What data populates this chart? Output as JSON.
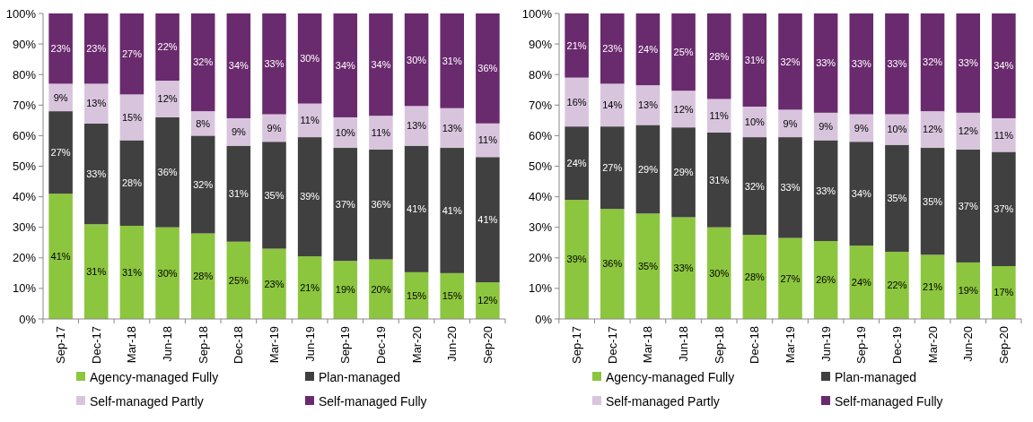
{
  "chart_data": [
    {
      "type": "bar",
      "stacked": true,
      "categories": [
        "Sep-17",
        "Dec-17",
        "Mar-18",
        "Jun-18",
        "Sep-18",
        "Dec-18",
        "Mar-19",
        "Jun-19",
        "Sep-19",
        "Dec-19",
        "Mar-20",
        "Jun-20",
        "Sep-20"
      ],
      "ylim": [
        0,
        100
      ],
      "yticks": [
        {
          "value": 0,
          "label": "0%"
        },
        {
          "value": 10,
          "label": "10%"
        },
        {
          "value": 20,
          "label": "20%"
        },
        {
          "value": 30,
          "label": "30%"
        },
        {
          "value": 40,
          "label": "40%"
        },
        {
          "value": 50,
          "label": "50%"
        },
        {
          "value": 60,
          "label": "60%"
        },
        {
          "value": 70,
          "label": "70%"
        },
        {
          "value": 80,
          "label": "80%"
        },
        {
          "value": 90,
          "label": "90%"
        },
        {
          "value": 100,
          "label": "100%"
        }
      ],
      "legend": "bottom",
      "series": [
        {
          "name": "Agency-managed Fully",
          "color": "#8cc63e",
          "values": [
            41,
            31,
            30.5,
            30,
            28,
            25.3,
            23,
            20.5,
            19,
            19.5,
            15.3,
            15,
            12
          ],
          "value_labels": [
            "41%",
            "31%",
            "31%",
            "30%",
            "28%",
            "25%",
            "23%",
            "21%",
            "19%",
            "20%",
            "15%",
            "15%",
            "12%"
          ]
        },
        {
          "name": "Plan-managed",
          "color": "#404040",
          "values": [
            27,
            33,
            28,
            36,
            32,
            31.4,
            35,
            39,
            37,
            36,
            41.4,
            41,
            41
          ],
          "value_labels": [
            "27%",
            "33%",
            "28%",
            "36%",
            "32%",
            "31%",
            "35%",
            "39%",
            "37%",
            "36%",
            "41%",
            "41%",
            "41%"
          ]
        },
        {
          "name": "Self-managed Partly",
          "color": "#d8c5dd",
          "values": [
            9,
            13,
            15,
            12,
            8,
            9,
            9,
            11,
            10,
            11,
            13,
            13,
            11
          ],
          "value_labels": [
            "9%",
            "13%",
            "15%",
            "12%",
            "8%",
            "9%",
            "9%",
            "11%",
            "10%",
            "11%",
            "13%",
            "13%",
            "11%"
          ]
        },
        {
          "name": "Self-managed Fully",
          "color": "#6a2a6e",
          "values": [
            23,
            23,
            26.5,
            22,
            32,
            34.3,
            33,
            29.5,
            34,
            33.5,
            30.3,
            31,
            36
          ],
          "value_labels": [
            "23%",
            "23%",
            "27%",
            "22%",
            "32%",
            "34%",
            "33%",
            "30%",
            "34%",
            "34%",
            "30%",
            "31%",
            "36%"
          ]
        }
      ]
    },
    {
      "type": "bar",
      "stacked": true,
      "categories": [
        "Sep-17",
        "Dec-17",
        "Mar-18",
        "Jun-18",
        "Sep-18",
        "Dec-18",
        "Mar-19",
        "Jun-19",
        "Sep-19",
        "Dec-19",
        "Mar-20",
        "Jun-20",
        "Sep-20"
      ],
      "ylim": [
        0,
        100
      ],
      "yticks": [
        {
          "value": 0,
          "label": "0%"
        },
        {
          "value": 10,
          "label": "10%"
        },
        {
          "value": 20,
          "label": "20%"
        },
        {
          "value": 30,
          "label": "30%"
        },
        {
          "value": 40,
          "label": "40%"
        },
        {
          "value": 50,
          "label": "50%"
        },
        {
          "value": 60,
          "label": "60%"
        },
        {
          "value": 70,
          "label": "70%"
        },
        {
          "value": 80,
          "label": "80%"
        },
        {
          "value": 90,
          "label": "90%"
        },
        {
          "value": 100,
          "label": "100%"
        }
      ],
      "legend": "bottom",
      "series": [
        {
          "name": "Agency-managed Fully",
          "color": "#8cc63e",
          "values": [
            39,
            36,
            34.5,
            33.3,
            30,
            27.5,
            26.5,
            25.5,
            24,
            22,
            21,
            18.5,
            17.3
          ],
          "value_labels": [
            "39%",
            "36%",
            "35%",
            "33%",
            "30%",
            "28%",
            "27%",
            "26%",
            "24%",
            "22%",
            "21%",
            "19%",
            "17%"
          ]
        },
        {
          "name": "Plan-managed",
          "color": "#404040",
          "values": [
            24,
            27,
            29,
            29.4,
            31,
            32,
            33,
            33,
            34,
            35,
            35,
            37,
            37.4
          ],
          "value_labels": [
            "24%",
            "27%",
            "29%",
            "29%",
            "31%",
            "32%",
            "33%",
            "33%",
            "34%",
            "35%",
            "35%",
            "37%",
            "37%"
          ]
        },
        {
          "name": "Self-managed Partly",
          "color": "#d8c5dd",
          "values": [
            16,
            14,
            13,
            12,
            11,
            10,
            9,
            9,
            9,
            10,
            12,
            12,
            11
          ],
          "value_labels": [
            "16%",
            "14%",
            "13%",
            "12%",
            "11%",
            "10%",
            "9%",
            "9%",
            "9%",
            "10%",
            "12%",
            "12%",
            "11%"
          ]
        },
        {
          "name": "Self-managed Fully",
          "color": "#6a2a6e",
          "values": [
            21,
            23,
            23.5,
            25.3,
            28,
            30.5,
            31.5,
            32.5,
            33,
            33,
            32,
            32.5,
            34.3
          ],
          "value_labels": [
            "21%",
            "23%",
            "24%",
            "25%",
            "28%",
            "31%",
            "32%",
            "33%",
            "33%",
            "33%",
            "32%",
            "33%",
            "34%"
          ]
        }
      ]
    }
  ]
}
